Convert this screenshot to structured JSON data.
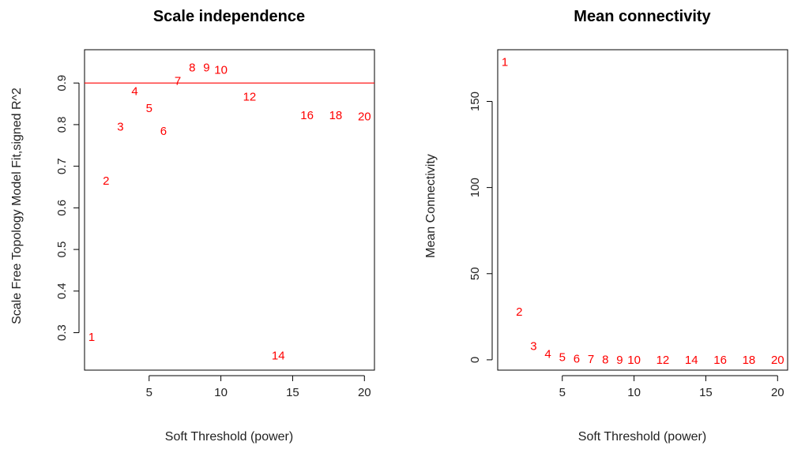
{
  "colors": {
    "points": "#ff0000",
    "refline": "#ff0000",
    "axes": "#000000"
  },
  "chart_data": [
    {
      "type": "scatter",
      "title": "Scale independence",
      "xlabel": "Soft Threshold (power)",
      "ylabel": "Scale Free Topology Model Fit,signed R^2",
      "xlim": [
        0.5,
        20.7
      ],
      "ylim": [
        0.21,
        0.98
      ],
      "xticks": [
        5,
        10,
        15,
        20
      ],
      "yticks": [
        0.3,
        0.4,
        0.5,
        0.6,
        0.7,
        0.8,
        0.9
      ],
      "reference_line": {
        "y": 0.9,
        "color": "#ff0000"
      },
      "points": [
        {
          "label": "1",
          "x": 1,
          "y": 0.29
        },
        {
          "label": "2",
          "x": 2,
          "y": 0.665
        },
        {
          "label": "3",
          "x": 3,
          "y": 0.795
        },
        {
          "label": "4",
          "x": 4,
          "y": 0.88
        },
        {
          "label": "5",
          "x": 5,
          "y": 0.84
        },
        {
          "label": "6",
          "x": 6,
          "y": 0.785
        },
        {
          "label": "7",
          "x": 7,
          "y": 0.905
        },
        {
          "label": "8",
          "x": 8,
          "y": 0.937
        },
        {
          "label": "9",
          "x": 9,
          "y": 0.937
        },
        {
          "label": "10",
          "x": 10,
          "y": 0.932
        },
        {
          "label": "12",
          "x": 12,
          "y": 0.867
        },
        {
          "label": "14",
          "x": 14,
          "y": 0.245
        },
        {
          "label": "16",
          "x": 16,
          "y": 0.823
        },
        {
          "label": "18",
          "x": 18,
          "y": 0.823
        },
        {
          "label": "20",
          "x": 20,
          "y": 0.82
        }
      ]
    },
    {
      "type": "scatter",
      "title": "Mean connectivity",
      "xlabel": "Soft Threshold (power)",
      "ylabel": "Mean Connectivity",
      "xlim": [
        0.5,
        20.7
      ],
      "ylim": [
        -6,
        180
      ],
      "xticks": [
        5,
        10,
        15,
        20
      ],
      "yticks": [
        0,
        50,
        100,
        150
      ],
      "points": [
        {
          "label": "1",
          "x": 1,
          "y": 173
        },
        {
          "label": "2",
          "x": 2,
          "y": 28
        },
        {
          "label": "3",
          "x": 3,
          "y": 8
        },
        {
          "label": "4",
          "x": 4,
          "y": 3.5
        },
        {
          "label": "5",
          "x": 5,
          "y": 1.5
        },
        {
          "label": "6",
          "x": 6,
          "y": 0.7
        },
        {
          "label": "7",
          "x": 7,
          "y": 0.3
        },
        {
          "label": "8",
          "x": 8,
          "y": 0.1
        },
        {
          "label": "9",
          "x": 9,
          "y": 0.05
        },
        {
          "label": "10",
          "x": 10,
          "y": 0.02
        },
        {
          "label": "12",
          "x": 12,
          "y": 0
        },
        {
          "label": "14",
          "x": 14,
          "y": 0
        },
        {
          "label": "16",
          "x": 16,
          "y": 0
        },
        {
          "label": "18",
          "x": 18,
          "y": 0
        },
        {
          "label": "20",
          "x": 20,
          "y": 0
        }
      ]
    }
  ]
}
